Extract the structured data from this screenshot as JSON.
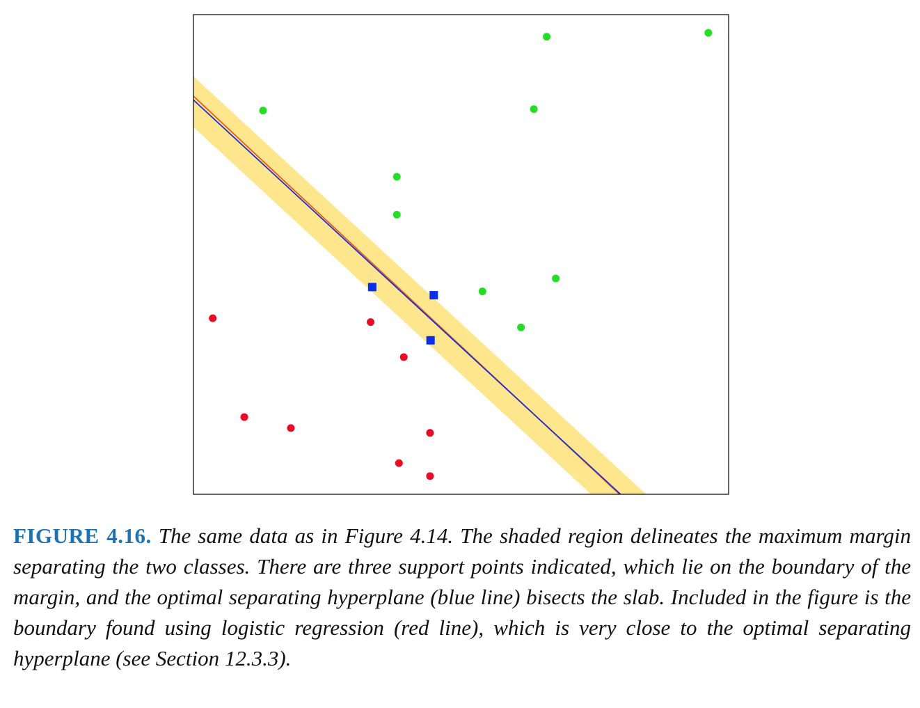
{
  "colors": {
    "class_a": "#21e021",
    "class_b": "#ee0a22",
    "support_points": "#0a2ff0",
    "margin_slab": "#fde68c",
    "optimal_hyperplane": "#1f2ed6",
    "logistic_boundary": "#ea5a1f",
    "frame": "#111111",
    "caption_label": "#1a72b8"
  },
  "chart_data": {
    "type": "scatter",
    "title": "",
    "xlabel": "",
    "ylabel": "",
    "xlim": [
      0,
      100
    ],
    "ylim": [
      0,
      100
    ],
    "grid": false,
    "axes_ticks": false,
    "series": [
      {
        "marker": "circle",
        "color": "#21e021",
        "points": [
          {
            "x": 13.0,
            "y": 80.0
          },
          {
            "x": 66.0,
            "y": 95.4
          },
          {
            "x": 96.2,
            "y": 96.2
          },
          {
            "x": 63.6,
            "y": 80.3
          },
          {
            "x": 38.0,
            "y": 66.2
          },
          {
            "x": 38.0,
            "y": 58.3
          },
          {
            "x": 67.7,
            "y": 45.0
          },
          {
            "x": 54.0,
            "y": 42.3
          },
          {
            "x": 61.2,
            "y": 34.8
          }
        ]
      },
      {
        "marker": "circle",
        "color": "#ee0a22",
        "points": [
          {
            "x": 3.6,
            "y": 36.7
          },
          {
            "x": 33.1,
            "y": 35.9
          },
          {
            "x": 39.3,
            "y": 28.6
          },
          {
            "x": 9.5,
            "y": 16.1
          },
          {
            "x": 18.2,
            "y": 13.8
          },
          {
            "x": 44.2,
            "y": 12.8
          },
          {
            "x": 38.4,
            "y": 6.5
          },
          {
            "x": 44.2,
            "y": 3.8
          }
        ]
      },
      {
        "marker": "square",
        "color": "#0a2ff0",
        "points": [
          {
            "x": 33.4,
            "y": 43.2
          },
          {
            "x": 44.9,
            "y": 41.5
          },
          {
            "x": 44.3,
            "y": 32.1
          }
        ]
      }
    ],
    "lines": [
      {
        "color": "#1f2ed6",
        "points": [
          {
            "x": 0.0,
            "y": 82.2
          },
          {
            "x": 80.0,
            "y": -0.2
          }
        ]
      },
      {
        "color": "#ea5a1f",
        "points": [
          {
            "x": 0.0,
            "y": 83.0
          },
          {
            "x": 79.8,
            "y": -0.2
          }
        ]
      }
    ],
    "margin_band": {
      "color": "#fde68c",
      "x_intercept_left": 74.3,
      "x_intercept_right": 84.6
    }
  },
  "caption": {
    "label": "FIGURE 4.16.",
    "text": "The same data as in Figure 4.14. The shaded region delineates the maximum margin separating the two classes. There are three support points indicated, which lie on the boundary of the margin, and the optimal separating hyperplane (blue line) bisects the slab. Included in the figure is the boundary found using logistic regression (red line), which is very close to the optimal separating hyperplane (see Section 12.3.3)."
  }
}
